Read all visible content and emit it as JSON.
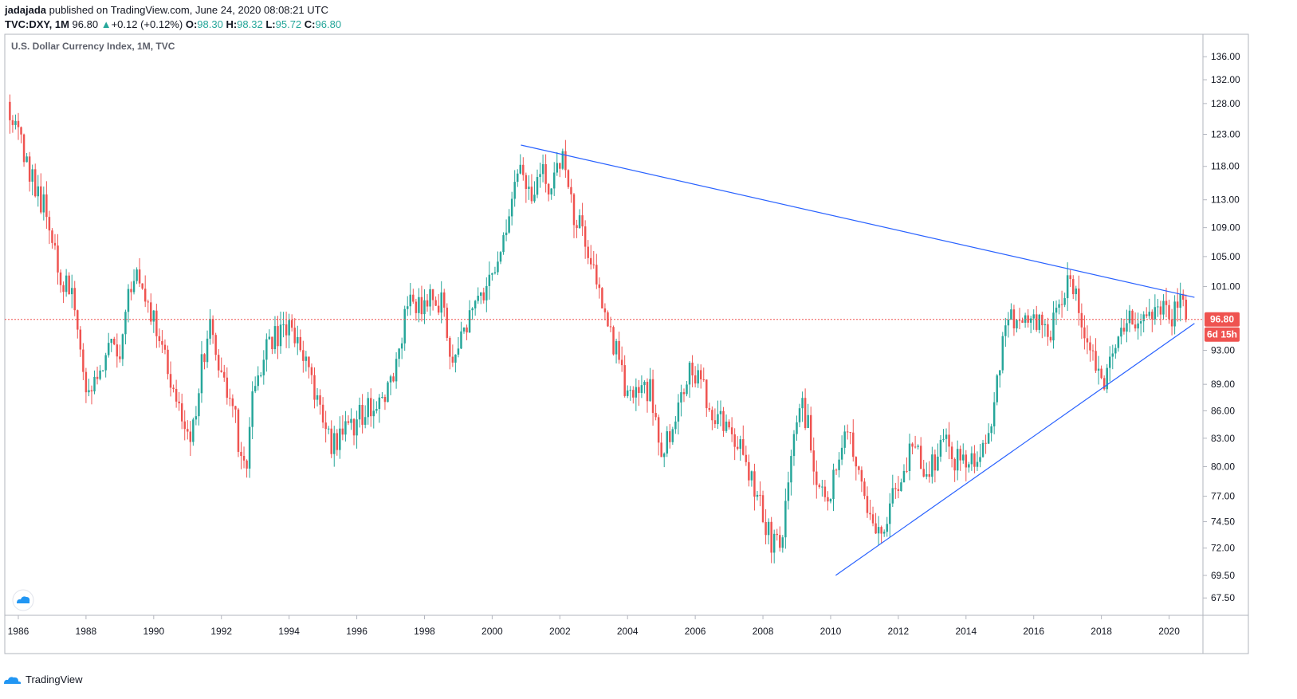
{
  "header": {
    "author": "jadajada",
    "published": "published on TradingView.com, June 24, 2020 08:08:21 UTC",
    "ticker": "TVC:DXY, 1M",
    "last": "96.80",
    "change_arrow": "▲",
    "change": "+0.12 (+0.12%)",
    "o_label": "O:",
    "o_value": "98.30",
    "h_label": "H:",
    "h_value": "98.32",
    "l_label": "L:",
    "l_value": "95.72",
    "c_label": "C:",
    "c_value": "96.80"
  },
  "chart_title": "U.S. Dollar Currency Index, 1M, TVC",
  "footer": {
    "brand": "TradingView"
  },
  "price_badge": "96.80",
  "countdown_badge": "6d 15h",
  "colors": {
    "up": "#26a69a",
    "down": "#ef5350",
    "trendline": "#2962ff",
    "price_line": "#ef5350"
  },
  "chart_data": {
    "type": "candlestick",
    "title": "U.S. Dollar Currency Index, 1M, TVC",
    "y_ticks": [
      "136.00",
      "132.00",
      "128.00",
      "123.00",
      "118.00",
      "113.00",
      "109.00",
      "105.00",
      "101.00",
      "93.00",
      "89.00",
      "86.00",
      "83.00",
      "80.00",
      "77.00",
      "74.50",
      "72.00",
      "69.50",
      "67.50"
    ],
    "y_tick_values": [
      136,
      132,
      128,
      123,
      118,
      113,
      109,
      105,
      101,
      93,
      89,
      86,
      83,
      80,
      77,
      74.5,
      72,
      69.5,
      67.5
    ],
    "x_ticks": [
      "1986",
      "1988",
      "1990",
      "1992",
      "1994",
      "1996",
      "1998",
      "2000",
      "2002",
      "2004",
      "2006",
      "2008",
      "2010",
      "2012",
      "2014",
      "2016",
      "2018",
      "2020"
    ],
    "x_tick_values": [
      1986,
      1988,
      1990,
      1992,
      1994,
      1996,
      1998,
      2000,
      2002,
      2004,
      2006,
      2008,
      2010,
      2012,
      2014,
      2016,
      2018,
      2020
    ],
    "x_range": [
      1985.6,
      2021.0
    ],
    "y_scale": "log",
    "y_range": [
      66.0,
      140.0
    ],
    "current_price": 96.8,
    "trendlines": [
      {
        "name": "resistance",
        "from": [
          2000.85,
          121.3
        ],
        "to": [
          2020.75,
          99.6
        ]
      },
      {
        "name": "support",
        "from": [
          2010.15,
          69.5
        ],
        "to": [
          2020.75,
          96.3
        ]
      }
    ],
    "anchors": [
      [
        1985.75,
        127.0
      ],
      [
        1985.9,
        126.0
      ],
      [
        1986.2,
        118.0
      ],
      [
        1986.5,
        115.0
      ],
      [
        1986.9,
        110.5
      ],
      [
        1987.2,
        103.5
      ],
      [
        1987.6,
        99.0
      ],
      [
        1987.95,
        88.0
      ],
      [
        1988.3,
        88.5
      ],
      [
        1988.7,
        93.5
      ],
      [
        1989.0,
        93.0
      ],
      [
        1989.4,
        103.5
      ],
      [
        1989.8,
        98.0
      ],
      [
        1990.2,
        94.5
      ],
      [
        1990.6,
        88.0
      ],
      [
        1990.9,
        84.5
      ],
      [
        1991.1,
        82.5
      ],
      [
        1991.45,
        92.0
      ],
      [
        1991.7,
        96.0
      ],
      [
        1992.0,
        89.0
      ],
      [
        1992.3,
        88.0
      ],
      [
        1992.6,
        80.0
      ],
      [
        1992.75,
        79.5
      ],
      [
        1992.95,
        89.0
      ],
      [
        1993.2,
        92.0
      ],
      [
        1993.6,
        94.5
      ],
      [
        1993.9,
        96.0
      ],
      [
        1994.3,
        94.0
      ],
      [
        1994.6,
        89.5
      ],
      [
        1994.9,
        87.0
      ],
      [
        1995.25,
        82.0
      ],
      [
        1995.5,
        83.5
      ],
      [
        1995.9,
        84.5
      ],
      [
        1996.3,
        86.5
      ],
      [
        1996.8,
        87.5
      ],
      [
        1997.1,
        91.0
      ],
      [
        1997.5,
        98.5
      ],
      [
        1997.8,
        98.0
      ],
      [
        1998.2,
        99.5
      ],
      [
        1998.6,
        98.5
      ],
      [
        1998.8,
        91.5
      ],
      [
        1999.1,
        95.0
      ],
      [
        1999.5,
        99.5
      ],
      [
        1999.9,
        101.5
      ],
      [
        2000.2,
        106.0
      ],
      [
        2000.5,
        110.0
      ],
      [
        2000.85,
        118.0
      ],
      [
        2001.1,
        113.0
      ],
      [
        2001.4,
        117.5
      ],
      [
        2001.7,
        114.0
      ],
      [
        2001.95,
        119.0
      ],
      [
        2002.15,
        119.5
      ],
      [
        2002.4,
        111.0
      ],
      [
        2002.7,
        107.5
      ],
      [
        2002.9,
        104.0
      ],
      [
        2003.2,
        100.0
      ],
      [
        2003.5,
        95.5
      ],
      [
        2003.9,
        89.0
      ],
      [
        2004.1,
        87.0
      ],
      [
        2004.4,
        89.0
      ],
      [
        2004.7,
        88.0
      ],
      [
        2004.9,
        82.0
      ],
      [
        2005.2,
        83.0
      ],
      [
        2005.6,
        89.0
      ],
      [
        2005.95,
        90.5
      ],
      [
        2006.3,
        88.0
      ],
      [
        2006.6,
        85.5
      ],
      [
        2006.9,
        83.5
      ],
      [
        2007.3,
        82.0
      ],
      [
        2007.7,
        78.0
      ],
      [
        2008.0,
        75.5
      ],
      [
        2008.3,
        72.0
      ],
      [
        2008.6,
        73.5
      ],
      [
        2008.85,
        83.0
      ],
      [
        2009.1,
        86.5
      ],
      [
        2009.3,
        85.0
      ],
      [
        2009.6,
        78.5
      ],
      [
        2009.9,
        76.0
      ],
      [
        2010.2,
        80.0
      ],
      [
        2010.45,
        86.0
      ],
      [
        2010.6,
        83.0
      ],
      [
        2010.85,
        78.0
      ],
      [
        2011.05,
        76.5
      ],
      [
        2011.3,
        74.5
      ],
      [
        2011.6,
        74.5
      ],
      [
        2011.9,
        78.5
      ],
      [
        2012.2,
        79.5
      ],
      [
        2012.5,
        83.0
      ],
      [
        2012.8,
        79.5
      ],
      [
        2013.1,
        81.0
      ],
      [
        2013.4,
        83.0
      ],
      [
        2013.7,
        80.5
      ],
      [
        2013.95,
        80.5
      ],
      [
        2014.3,
        80.0
      ],
      [
        2014.6,
        82.0
      ],
      [
        2014.9,
        88.0
      ],
      [
        2015.2,
        97.0
      ],
      [
        2015.5,
        96.0
      ],
      [
        2015.9,
        98.5
      ],
      [
        2016.2,
        96.0
      ],
      [
        2016.5,
        95.0
      ],
      [
        2016.95,
        101.5
      ],
      [
        2017.2,
        100.0
      ],
      [
        2017.5,
        95.0
      ],
      [
        2017.75,
        93.0
      ],
      [
        2018.0,
        89.5
      ],
      [
        2018.2,
        90.0
      ],
      [
        2018.5,
        94.5
      ],
      [
        2018.8,
        96.5
      ],
      [
        2019.1,
        96.5
      ],
      [
        2019.5,
        97.5
      ],
      [
        2019.8,
        98.5
      ],
      [
        2020.1,
        97.5
      ],
      [
        2020.25,
        99.0
      ],
      [
        2020.45,
        98.0
      ],
      [
        2020.5,
        96.8
      ]
    ]
  }
}
